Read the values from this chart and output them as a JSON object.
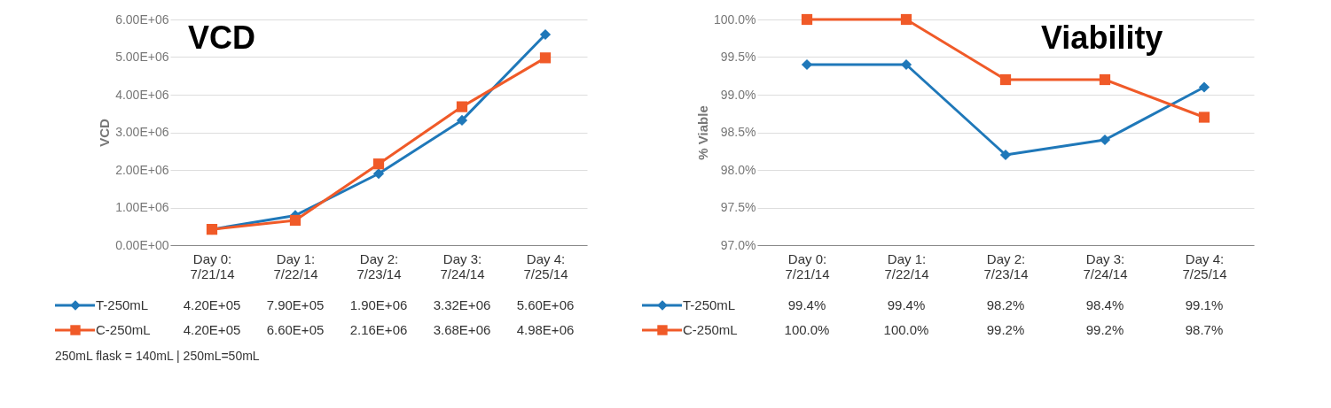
{
  "chart_data": [
    {
      "type": "line",
      "title": "VCD",
      "ylabel": "VCD",
      "categories": [
        "Day 0:\n7/21/14",
        "Day 1:\n7/22/14",
        "Day 2:\n7/23/14",
        "Day 3:\n7/24/14",
        "Day 4:\n7/25/14"
      ],
      "ylim": [
        0,
        6000000
      ],
      "yticks": [
        {
          "value": 0,
          "label": "0.00E+00"
        },
        {
          "value": 1000000,
          "label": "1.00E+06"
        },
        {
          "value": 2000000,
          "label": "2.00E+06"
        },
        {
          "value": 3000000,
          "label": "3.00E+06"
        },
        {
          "value": 4000000,
          "label": "4.00E+06"
        },
        {
          "value": 5000000,
          "label": "5.00E+06"
        },
        {
          "value": 6000000,
          "label": "6.00E+06"
        }
      ],
      "grid": "y",
      "legend": "bottom",
      "annotations": [
        "250mL flask = 140mL | 250mL=50mL"
      ],
      "series": [
        {
          "name": "T-250mL",
          "color": "#1f78b9",
          "marker": "diamond",
          "values": [
            420000,
            790000,
            1900000,
            3320000,
            5600000
          ],
          "value_labels": [
            "4.20E+05",
            "7.90E+05",
            "1.90E+06",
            "3.32E+06",
            "5.60E+06"
          ]
        },
        {
          "name": "C-250mL",
          "color": "#f05a28",
          "marker": "square",
          "values": [
            420000,
            660000,
            2160000,
            3680000,
            4980000
          ],
          "value_labels": [
            "4.20E+05",
            "6.60E+05",
            "2.16E+06",
            "3.68E+06",
            "4.98E+06"
          ]
        }
      ]
    },
    {
      "type": "line",
      "title": "Viability",
      "ylabel": "% Viable",
      "categories": [
        "Day 0:\n7/21/14",
        "Day 1:\n7/22/14",
        "Day 2:\n7/23/14",
        "Day 3:\n7/24/14",
        "Day 4:\n7/25/14"
      ],
      "ylim": [
        97,
        100
      ],
      "yticks": [
        {
          "value": 97,
          "label": "97.0%"
        },
        {
          "value": 97.5,
          "label": "97.5%"
        },
        {
          "value": 98,
          "label": "98.0%"
        },
        {
          "value": 98.5,
          "label": "98.5%"
        },
        {
          "value": 99,
          "label": "99.0%"
        },
        {
          "value": 99.5,
          "label": "99.5%"
        },
        {
          "value": 100,
          "label": "100.0%"
        }
      ],
      "grid": "y",
      "legend": "bottom",
      "series": [
        {
          "name": "T-250mL",
          "color": "#1f78b9",
          "marker": "diamond",
          "values": [
            99.4,
            99.4,
            98.2,
            98.4,
            99.1
          ],
          "value_labels": [
            "99.4%",
            "99.4%",
            "98.2%",
            "98.4%",
            "99.1%"
          ]
        },
        {
          "name": "C-250mL",
          "color": "#f05a28",
          "marker": "square",
          "values": [
            100,
            100,
            99.2,
            99.2,
            98.7
          ],
          "value_labels": [
            "100.0%",
            "100.0%",
            "99.2%",
            "99.2%",
            "98.7%"
          ]
        }
      ]
    }
  ]
}
